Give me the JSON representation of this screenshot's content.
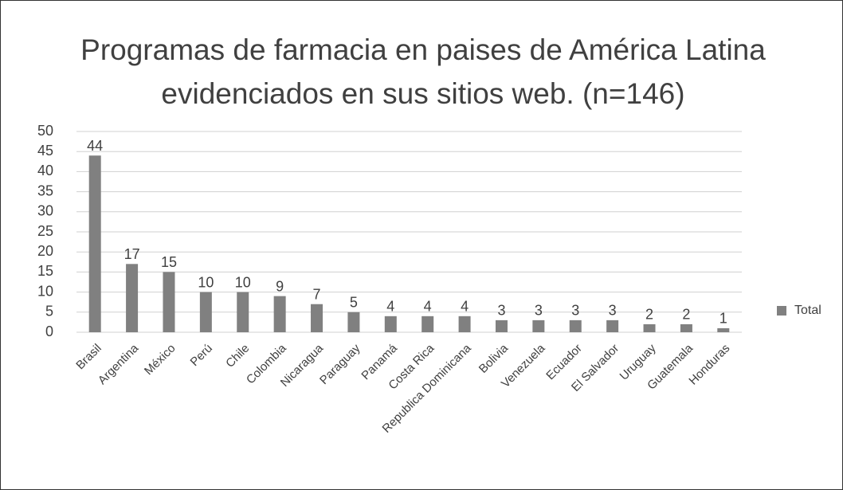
{
  "chart_data": {
    "type": "bar",
    "title": "Programas de farmacia en paises de América Latina evidenciados en sus sitios web. (n=146)",
    "categories": [
      "Brasil",
      "Argentina",
      "México",
      "Perú",
      "Chile",
      "Colombia",
      "Nicaragua",
      "Paraguay",
      "Panamá",
      "Costa Rica",
      "Republica Dominicana",
      "Bolivia",
      "Venezuela",
      "Ecuador",
      "El Salvador",
      "Uruguay",
      "Guatemala",
      "Honduras"
    ],
    "series": [
      {
        "name": "Total",
        "color": "#808080",
        "values": [
          44,
          17,
          15,
          10,
          10,
          9,
          7,
          5,
          4,
          4,
          4,
          3,
          3,
          3,
          3,
          2,
          2,
          1
        ]
      }
    ],
    "ylim": [
      0,
      50
    ],
    "yticks": [
      0,
      5,
      10,
      15,
      20,
      25,
      30,
      35,
      40,
      45,
      50
    ],
    "grid": true,
    "legend": "right"
  }
}
